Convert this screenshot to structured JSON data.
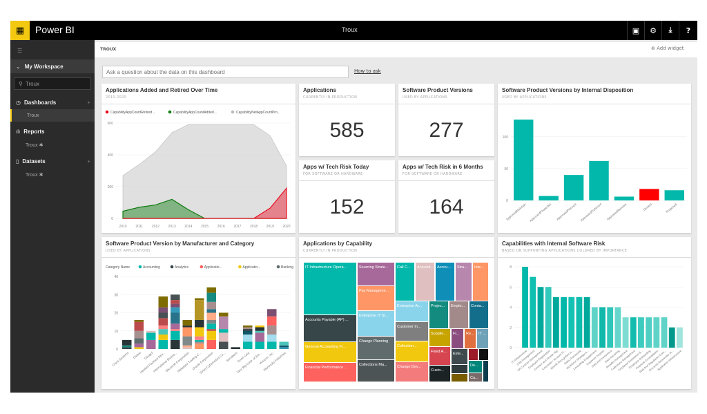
{
  "app": {
    "name": "Power BI",
    "title": "Troux",
    "icons": [
      "fullscreen-icon",
      "gear-icon",
      "download-icon",
      "help-icon"
    ],
    "icon_glyphs": [
      "▣",
      "⚙",
      "⤓",
      "?"
    ]
  },
  "sidebar": {
    "workspace": "My Workspace",
    "search_value": "Troux",
    "sections": [
      {
        "label": "Dashboards",
        "icon": "dashboard-icon",
        "item": "Troux",
        "has_add": true
      },
      {
        "label": "Reports",
        "icon": "report-icon",
        "item": "Troux ✱",
        "has_add": false
      },
      {
        "label": "Datasets",
        "icon": "dataset-icon",
        "item": "Troux ✱",
        "has_add": true
      }
    ]
  },
  "header": {
    "breadcrumb": "TROUX",
    "add_widget": "Add widget"
  },
  "qa": {
    "placeholder": "Ask a question about the data on this dashboard",
    "how_to_ask": "How to ask"
  },
  "tiles": {
    "area": {
      "title": "Applications Added and Retired Over Time",
      "subtitle": "2010-2020"
    },
    "apps": {
      "title": "Applications",
      "subtitle": "CURRENTLY IN PRODUCTION",
      "value": "585"
    },
    "spv": {
      "title": "Software Product Versions",
      "subtitle": "USED BY APPLICATIONS",
      "value": "277"
    },
    "risk_today": {
      "title": "Apps w/ Tech Risk Today",
      "subtitle": "FOR SOFTWARE OR HARDWARE",
      "value": "152"
    },
    "risk_6m": {
      "title": "Apps w/ Tech Risk in 6 Months",
      "subtitle": "FOR SOFTWARE OR HARDWARE",
      "value": "164"
    },
    "disp": {
      "title": "Software Product Versions by Internal Disposition",
      "subtitle": "USED BY APPLICATIONS"
    },
    "stack": {
      "title": "Software Product Version by Manufacturer and Category",
      "subtitle": "USED BY APPLICATIONS"
    },
    "tree": {
      "title": "Applications by Capability",
      "subtitle": "CURRENTLY IN PRODUCTION"
    },
    "risk": {
      "title": "Capabilities with Internal Software Risk",
      "subtitle": "BASED ON SUPPORTING APPLICATIONS COLORED BY IMPORTANCE"
    }
  },
  "chart_data": [
    {
      "type": "area",
      "x": [
        2010,
        2011,
        2012,
        2013,
        2014,
        2015,
        2016,
        2017,
        2018,
        2019,
        2020
      ],
      "ylim": [
        0,
        600
      ],
      "yticks": [
        0,
        200,
        400,
        600
      ],
      "legend_position": "top-left",
      "series": [
        {
          "name": "CapabilityAppCountRetired...",
          "color": "#e81123",
          "values": [
            0,
            0,
            0,
            0,
            0,
            0,
            0,
            0,
            0,
            65,
            190
          ]
        },
        {
          "name": "CapabilityAppCountAdded...",
          "color": "#107c10",
          "values": [
            45,
            70,
            85,
            120,
            55,
            0,
            0,
            0,
            0,
            0,
            0
          ]
        },
        {
          "name": "CapabilityNetAppCountPro...",
          "color": "#bbbbbb",
          "values": [
            270,
            340,
            420,
            540,
            590,
            590,
            590,
            590,
            590,
            520,
            330
          ]
        }
      ]
    },
    {
      "type": "bar",
      "categories": [
        "ApprovedMaintain",
        "ApprovedPhaseOut",
        "ApprovedPlanned",
        "ApprovedPreferred",
        "ApprovedRemove",
        "Denied",
        "Proposed"
      ],
      "values": [
        127,
        7,
        40,
        62,
        6,
        18,
        16
      ],
      "colors": [
        "#01b8aa",
        "#01b8aa",
        "#01b8aa",
        "#01b8aa",
        "#01b8aa",
        "#ff0000",
        "#01b8aa"
      ],
      "ylim": [
        0,
        140
      ],
      "yticks": [
        0,
        50,
        100
      ]
    },
    {
      "type": "bar",
      "stacked": true,
      "legend_title": "Category Name",
      "ylim": [
        0,
        40
      ],
      "yticks": [
        0,
        10,
        20,
        30,
        40
      ],
      "series": [
        {
          "name": "Accounting",
          "color": "#01b8aa"
        },
        {
          "name": "Analytics",
          "color": "#374649"
        },
        {
          "name": "Applicatio...",
          "color": "#fd625e"
        },
        {
          "name": "Applicatio...",
          "color": "#f2c80f"
        },
        {
          "name": "Banking",
          "color": "#5f6b6d"
        },
        {
          "color": "#8ad4eb"
        },
        {
          "color": "#fe9666"
        },
        {
          "color": "#a66999"
        },
        {
          "color": "#3599b8"
        },
        {
          "color": "#dfbfbf"
        },
        {
          "color": "#4ac5bb"
        },
        {
          "color": "#5f6b6d"
        },
        {
          "color": "#fb8281"
        },
        {
          "color": "#f4d25a"
        },
        {
          "color": "#7f898a"
        },
        {
          "color": "#a4ddee"
        },
        {
          "color": "#fdab89"
        },
        {
          "color": "#b687ac"
        },
        {
          "color": "#28738a"
        },
        {
          "color": "#a78f8f"
        },
        {
          "color": "#168980"
        },
        {
          "color": "#293537"
        },
        {
          "color": "#bb4a4a"
        },
        {
          "color": "#b59525"
        },
        {
          "color": "#475052"
        },
        {
          "color": "#6a9fb0"
        },
        {
          "color": "#bd7150"
        },
        {
          "color": "#7b4f71"
        },
        {
          "color": "#115767"
        },
        {
          "color": "#7f6c00"
        }
      ],
      "bars": [
        {
          "label": "Cisco Systems",
          "segments": [
            [
              1,
              1
            ],
            [
              20,
              1
            ],
            [
              21,
              3
            ]
          ]
        },
        {
          "label": "Global",
          "segments": [
            [
              3,
              1
            ],
            [
              7,
              2
            ],
            [
              4,
              3
            ],
            [
              19,
              4
            ],
            [
              22,
              5
            ],
            [
              29,
              1
            ]
          ]
        },
        {
          "label": "Googol",
          "segments": [
            [
              7,
              5
            ],
            [
              0,
              4
            ],
            [
              9,
              1
            ]
          ]
        },
        {
          "label": "Hewlett-Packard Dev...",
          "segments": [
            [
              0,
              5
            ],
            [
              3,
              3
            ],
            [
              10,
              3
            ],
            [
              12,
              2
            ],
            [
              22,
              4
            ],
            [
              24,
              3
            ],
            [
              27,
              3
            ],
            [
              29,
              6
            ]
          ]
        },
        {
          "label": "International Busine...",
          "segments": [
            [
              21,
              5
            ],
            [
              0,
              5
            ],
            [
              12,
              1
            ],
            [
              7,
              3
            ],
            [
              18,
              6
            ],
            [
              8,
              3
            ],
            [
              27,
              2
            ],
            [
              22,
              2
            ],
            [
              24,
              3
            ]
          ]
        },
        {
          "label": "Microsoft Corporation",
          "segments": [
            [
              9,
              1
            ],
            [
              16,
              1
            ],
            [
              14,
              5
            ],
            [
              6,
              5
            ],
            [
              21,
              1
            ],
            [
              29,
              3
            ]
          ]
        },
        {
          "label": "Nakatomi Trading C...",
          "segments": [
            [
              6,
              3
            ],
            [
              19,
              1
            ],
            [
              0,
              1
            ],
            [
              12,
              2
            ],
            [
              3,
              5
            ],
            [
              21,
              4
            ],
            [
              23,
              11
            ],
            [
              29,
              1
            ]
          ]
        },
        {
          "label": "Oracle Corporation",
          "segments": [
            [
              2,
              5
            ],
            [
              3,
              5
            ],
            [
              22,
              1
            ],
            [
              0,
              3
            ],
            [
              14,
              2
            ],
            [
              16,
              4
            ],
            [
              18,
              2
            ],
            [
              19,
              4
            ],
            [
              20,
              5
            ],
            [
              29,
              3
            ]
          ]
        },
        {
          "label": "Sirius Cybernetics Co...",
          "segments": [
            [
              24,
              4
            ],
            [
              9,
              5
            ],
            [
              0,
              2
            ],
            [
              17,
              7
            ],
            [
              29,
              2
            ]
          ]
        },
        {
          "label": "Sensitech",
          "segments": [
            [
              21,
              1
            ]
          ]
        },
        {
          "label": "Tyrell Corp",
          "segments": [
            [
              0,
              4
            ],
            [
              15,
              4
            ],
            [
              28,
              2
            ],
            [
              21,
              1
            ],
            [
              19,
              1
            ],
            [
              29,
              1
            ]
          ]
        },
        {
          "label": "Very Big Corp. of Am...",
          "segments": [
            [
              0,
              4
            ],
            [
              7,
              5
            ],
            [
              10,
              1
            ],
            [
              21,
              2
            ],
            [
              3,
              1
            ]
          ]
        },
        {
          "label": "Virtucon, Inc.",
          "segments": [
            [
              0,
              4
            ],
            [
              15,
              4
            ],
            [
              19,
              5
            ],
            [
              2,
              5
            ],
            [
              27,
              4
            ]
          ]
        },
        {
          "label": "Warbucks Industries",
          "segments": [
            [
              8,
              1
            ],
            [
              28,
              1
            ],
            [
              10,
              2
            ]
          ]
        }
      ]
    },
    {
      "type": "treemap",
      "items": [
        {
          "label": "IT Infrastructure Opera...",
          "color": "#01b8aa"
        },
        {
          "label": "Accounts Payable (AP) ...",
          "color": "#374649"
        },
        {
          "label": "General Accounting Fi...",
          "color": "#f2c80f"
        },
        {
          "label": "Financial Performance ...",
          "color": "#fd625e"
        },
        {
          "label": "Sourcing Strate...",
          "color": "#a66999"
        },
        {
          "label": "Pay Manageme...",
          "color": "#fe9666"
        },
        {
          "label": "Enterprise IT St...",
          "color": "#8ad4eb"
        },
        {
          "label": "Change Planning",
          "color": "#5f6b6d"
        },
        {
          "label": "Collections Ma...",
          "color": "#4d5456"
        },
        {
          "label": "Call C...",
          "color": "#01b8aa"
        },
        {
          "label": "Acquisit...",
          "color": "#dfbfbf"
        },
        {
          "label": "Accou...",
          "color": "#0f8fb8"
        },
        {
          "label": "Stra...",
          "color": "#b887ad"
        },
        {
          "label": "Inte...",
          "color": "#fe9666"
        },
        {
          "label": "Enterprise Ar...",
          "color": "#8ad4eb"
        },
        {
          "label": "Customer In...",
          "color": "#7f7f7f"
        },
        {
          "label": "Collection...",
          "color": "#f2c80f"
        },
        {
          "label": "Change Dev...",
          "color": "#f47b7b"
        },
        {
          "label": "Projec...",
          "color": "#138b7f"
        },
        {
          "label": "Emplo...",
          "color": "#a38a8a"
        },
        {
          "label": "Conta...",
          "color": "#126e8a"
        },
        {
          "label": "Supplie...",
          "color": "#c8a400"
        },
        {
          "label": "Fi...",
          "color": "#8b4d7f"
        },
        {
          "label": "Re...",
          "color": "#e0703f"
        },
        {
          "label": "IT ...",
          "color": "#6fa2b8"
        },
        {
          "label": "Fixed A...",
          "color": "#d64550"
        },
        {
          "label": "Custo...",
          "color": "#1c2325"
        },
        {
          "label": "Exte...",
          "color": "#3e4a4d"
        },
        {
          "label": "",
          "color": "#9d1c2a"
        },
        {
          "label": "",
          "color": "#111111"
        },
        {
          "label": "",
          "color": "#2f3a3d"
        },
        {
          "label": "",
          "color": "#7a5c00"
        },
        {
          "label": "De...",
          "color": "#00857a"
        },
        {
          "label": "Ca...",
          "color": "#7b6a6a"
        },
        {
          "label": "",
          "color": "#0b3d4d"
        }
      ]
    },
    {
      "type": "bar",
      "ylim": [
        0,
        8
      ],
      "yticks": [
        0,
        2,
        4,
        6,
        8
      ],
      "categories": [
        "IT Infrastructure",
        "CAB Management",
        "CA Contract Management",
        "Employee Registration",
        "Contract and Vendor Mgt",
        "Corporate / Account M...",
        "Benefit Recognition &...",
        "Sales Processing",
        "Workforce Strategy &...",
        "Consulting Engagement",
        "Customer Support",
        "Debt And Investment",
        "Data Reporting",
        "Benefits Management",
        "Collections Management",
        "Employee Assistance &...",
        "Employee Onboarding",
        "Financial Consolidation",
        "Risk And Regulatory Com...",
        "Accounts Receivable (A...",
        "Application Infrastructure"
      ],
      "values": [
        8,
        7,
        6,
        6,
        5,
        5,
        5,
        5,
        5,
        4,
        4,
        4,
        4,
        3,
        3,
        3,
        3,
        3,
        3,
        2,
        2
      ],
      "colors": [
        "#01b8aa",
        "#0fc0b0",
        "#00a99b",
        "#33c9bc",
        "#00a99b",
        "#01b8aa",
        "#14c2b4",
        "#0fbcae",
        "#00a99b",
        "#5fd3c8",
        "#0fb8aa",
        "#2ec6b9",
        "#66d6cc",
        "#7fdcd3",
        "#14bcae",
        "#3ccbbf",
        "#4fcfc4",
        "#5fd3c8",
        "#5fd3c8",
        "#00998c",
        "#9fe4dd"
      ]
    }
  ]
}
